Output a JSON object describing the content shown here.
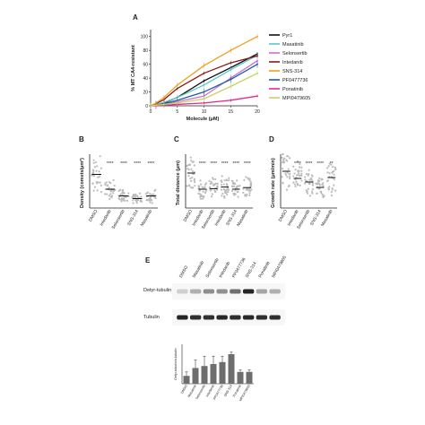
{
  "panels": {
    "a": "A",
    "b": "B",
    "c": "C",
    "d": "D",
    "e": "E"
  },
  "chart_data": [
    {
      "panel": "A",
      "type": "line",
      "xlabel": "Molecule (μM)",
      "ylabel": "% MT CA4-resistant",
      "x": [
        0,
        1,
        2.5,
        5,
        10,
        15,
        20
      ],
      "xticks": [
        0,
        5,
        10,
        15,
        20
      ],
      "yticks": [
        0,
        20,
        40,
        60,
        80,
        100
      ],
      "xlim": [
        0,
        20
      ],
      "ylim": [
        0,
        110
      ],
      "legend_position": "right",
      "series": [
        {
          "name": "Pyr1",
          "color": "#111111",
          "values": [
            0,
            2,
            4,
            12,
            36,
            55,
            75
          ]
        },
        {
          "name": "Masatinib",
          "color": "#5cc8c8",
          "values": [
            0,
            2,
            5,
            12,
            30,
            52,
            73
          ]
        },
        {
          "name": "Selonsertib",
          "color": "#d070d0",
          "values": [
            0,
            1,
            2,
            6,
            14,
            40,
            65
          ]
        },
        {
          "name": "Intedanib",
          "color": "#8b1a1a",
          "values": [
            0,
            3,
            9,
            25,
            47,
            62,
            72
          ]
        },
        {
          "name": "SNS-314",
          "color": "#f0a020",
          "values": [
            0,
            4,
            12,
            30,
            58,
            80,
            100
          ]
        },
        {
          "name": "PF0477736",
          "color": "#1e5aa8",
          "values": [
            0,
            1,
            3,
            8,
            20,
            38,
            60
          ]
        },
        {
          "name": "Ponatinib",
          "color": "#e82a8a",
          "values": [
            0,
            0,
            1,
            2,
            4,
            8,
            14
          ]
        },
        {
          "name": "MPI0479605",
          "color": "#c8d060",
          "values": [
            0,
            1,
            2,
            4,
            10,
            28,
            47
          ]
        }
      ]
    },
    {
      "panel": "B",
      "type": "scatter",
      "ylabel": "Density (comets/μm²)",
      "categories": [
        "DMSO",
        "Intedanib",
        "Selonsertib",
        "SNS-314",
        "Masatinib"
      ],
      "means": [
        0.125,
        0.07,
        0.045,
        0.035,
        0.045
      ],
      "significance": [
        "",
        "****",
        "****",
        "****",
        "****"
      ]
    },
    {
      "panel": "C",
      "type": "scatter",
      "ylabel": "Total distance (μm)",
      "categories": [
        "DMSO",
        "Intedanib",
        "Selonsertib",
        "Intedanib",
        "SNS-314",
        "Masatinib"
      ],
      "means": [
        6.5,
        3.5,
        3.6,
        3.9,
        3.5,
        3.8
      ],
      "significance": [
        "",
        "****",
        "****",
        "****",
        "****",
        "****"
      ]
    },
    {
      "panel": "D",
      "type": "scatter",
      "ylabel": "Growth rate (μm/min)",
      "categories": [
        "DMSO",
        "Intedanib",
        "Selonsertib",
        "SNS-314",
        "Masatinib"
      ],
      "means": [
        20.5,
        16.5,
        14.5,
        11.5,
        17
      ],
      "significance": [
        "",
        "****",
        "****",
        "****",
        "**"
      ]
    },
    {
      "panel": "E",
      "type": "bar",
      "ylabel": "Detyr-tubulin/α-tubulin",
      "categories": [
        "DMSO",
        "Masatinib",
        "Selonsertib",
        "Intedanib",
        "PF0477736",
        "SNS-314",
        "Ponatinib",
        "MPI0479605"
      ],
      "values": [
        0.2,
        0.4,
        0.45,
        0.5,
        0.55,
        0.75,
        0.3,
        0.3
      ],
      "errors": [
        0.1,
        0.2,
        0.25,
        0.2,
        0.15,
        0.05,
        0.05,
        0.05
      ],
      "ylim": [
        0,
        1
      ]
    }
  ],
  "blots": {
    "lanes": [
      "DMSO",
      "Masatinib",
      "Selonsertib",
      "Intedanib",
      "PF0477736",
      "SNS-314",
      "Ponatinib",
      "MPI0479605"
    ],
    "rows": [
      {
        "label": "Detyr-tubulin",
        "intensities": [
          0.15,
          0.3,
          0.45,
          0.45,
          0.6,
          0.95,
          0.35,
          0.3
        ]
      },
      {
        "label": "Tubulin",
        "intensities": [
          0.95,
          0.9,
          0.9,
          0.92,
          0.9,
          0.93,
          0.9,
          0.9
        ]
      }
    ]
  }
}
